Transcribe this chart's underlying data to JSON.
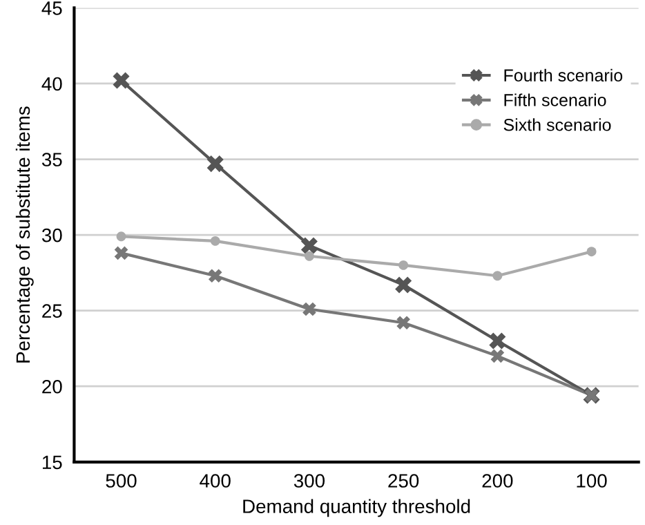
{
  "chart_data": {
    "type": "line",
    "xlabel": "Demand quantity threshold",
    "ylabel": "Percentage of substitute items",
    "categories": [
      "500",
      "400",
      "300",
      "250",
      "200",
      "100"
    ],
    "series": [
      {
        "name": "Fourth scenario",
        "color": "#555555",
        "marker": "cross",
        "values": [
          40.2,
          34.7,
          29.3,
          26.7,
          23.0,
          19.4
        ]
      },
      {
        "name": "Fifth scenario",
        "color": "#777777",
        "marker": "cross",
        "values": [
          28.8,
          27.3,
          25.1,
          24.2,
          22.0,
          19.4
        ]
      },
      {
        "name": "Sixth scenario",
        "color": "#aaaaaa",
        "marker": "circle",
        "values": [
          29.9,
          29.6,
          28.6,
          28.0,
          27.3,
          28.9
        ]
      }
    ],
    "ylim": [
      15,
      45
    ],
    "yticks": [
      15,
      20,
      25,
      30,
      35,
      40,
      45
    ],
    "grid": "y",
    "legend": "top right"
  }
}
